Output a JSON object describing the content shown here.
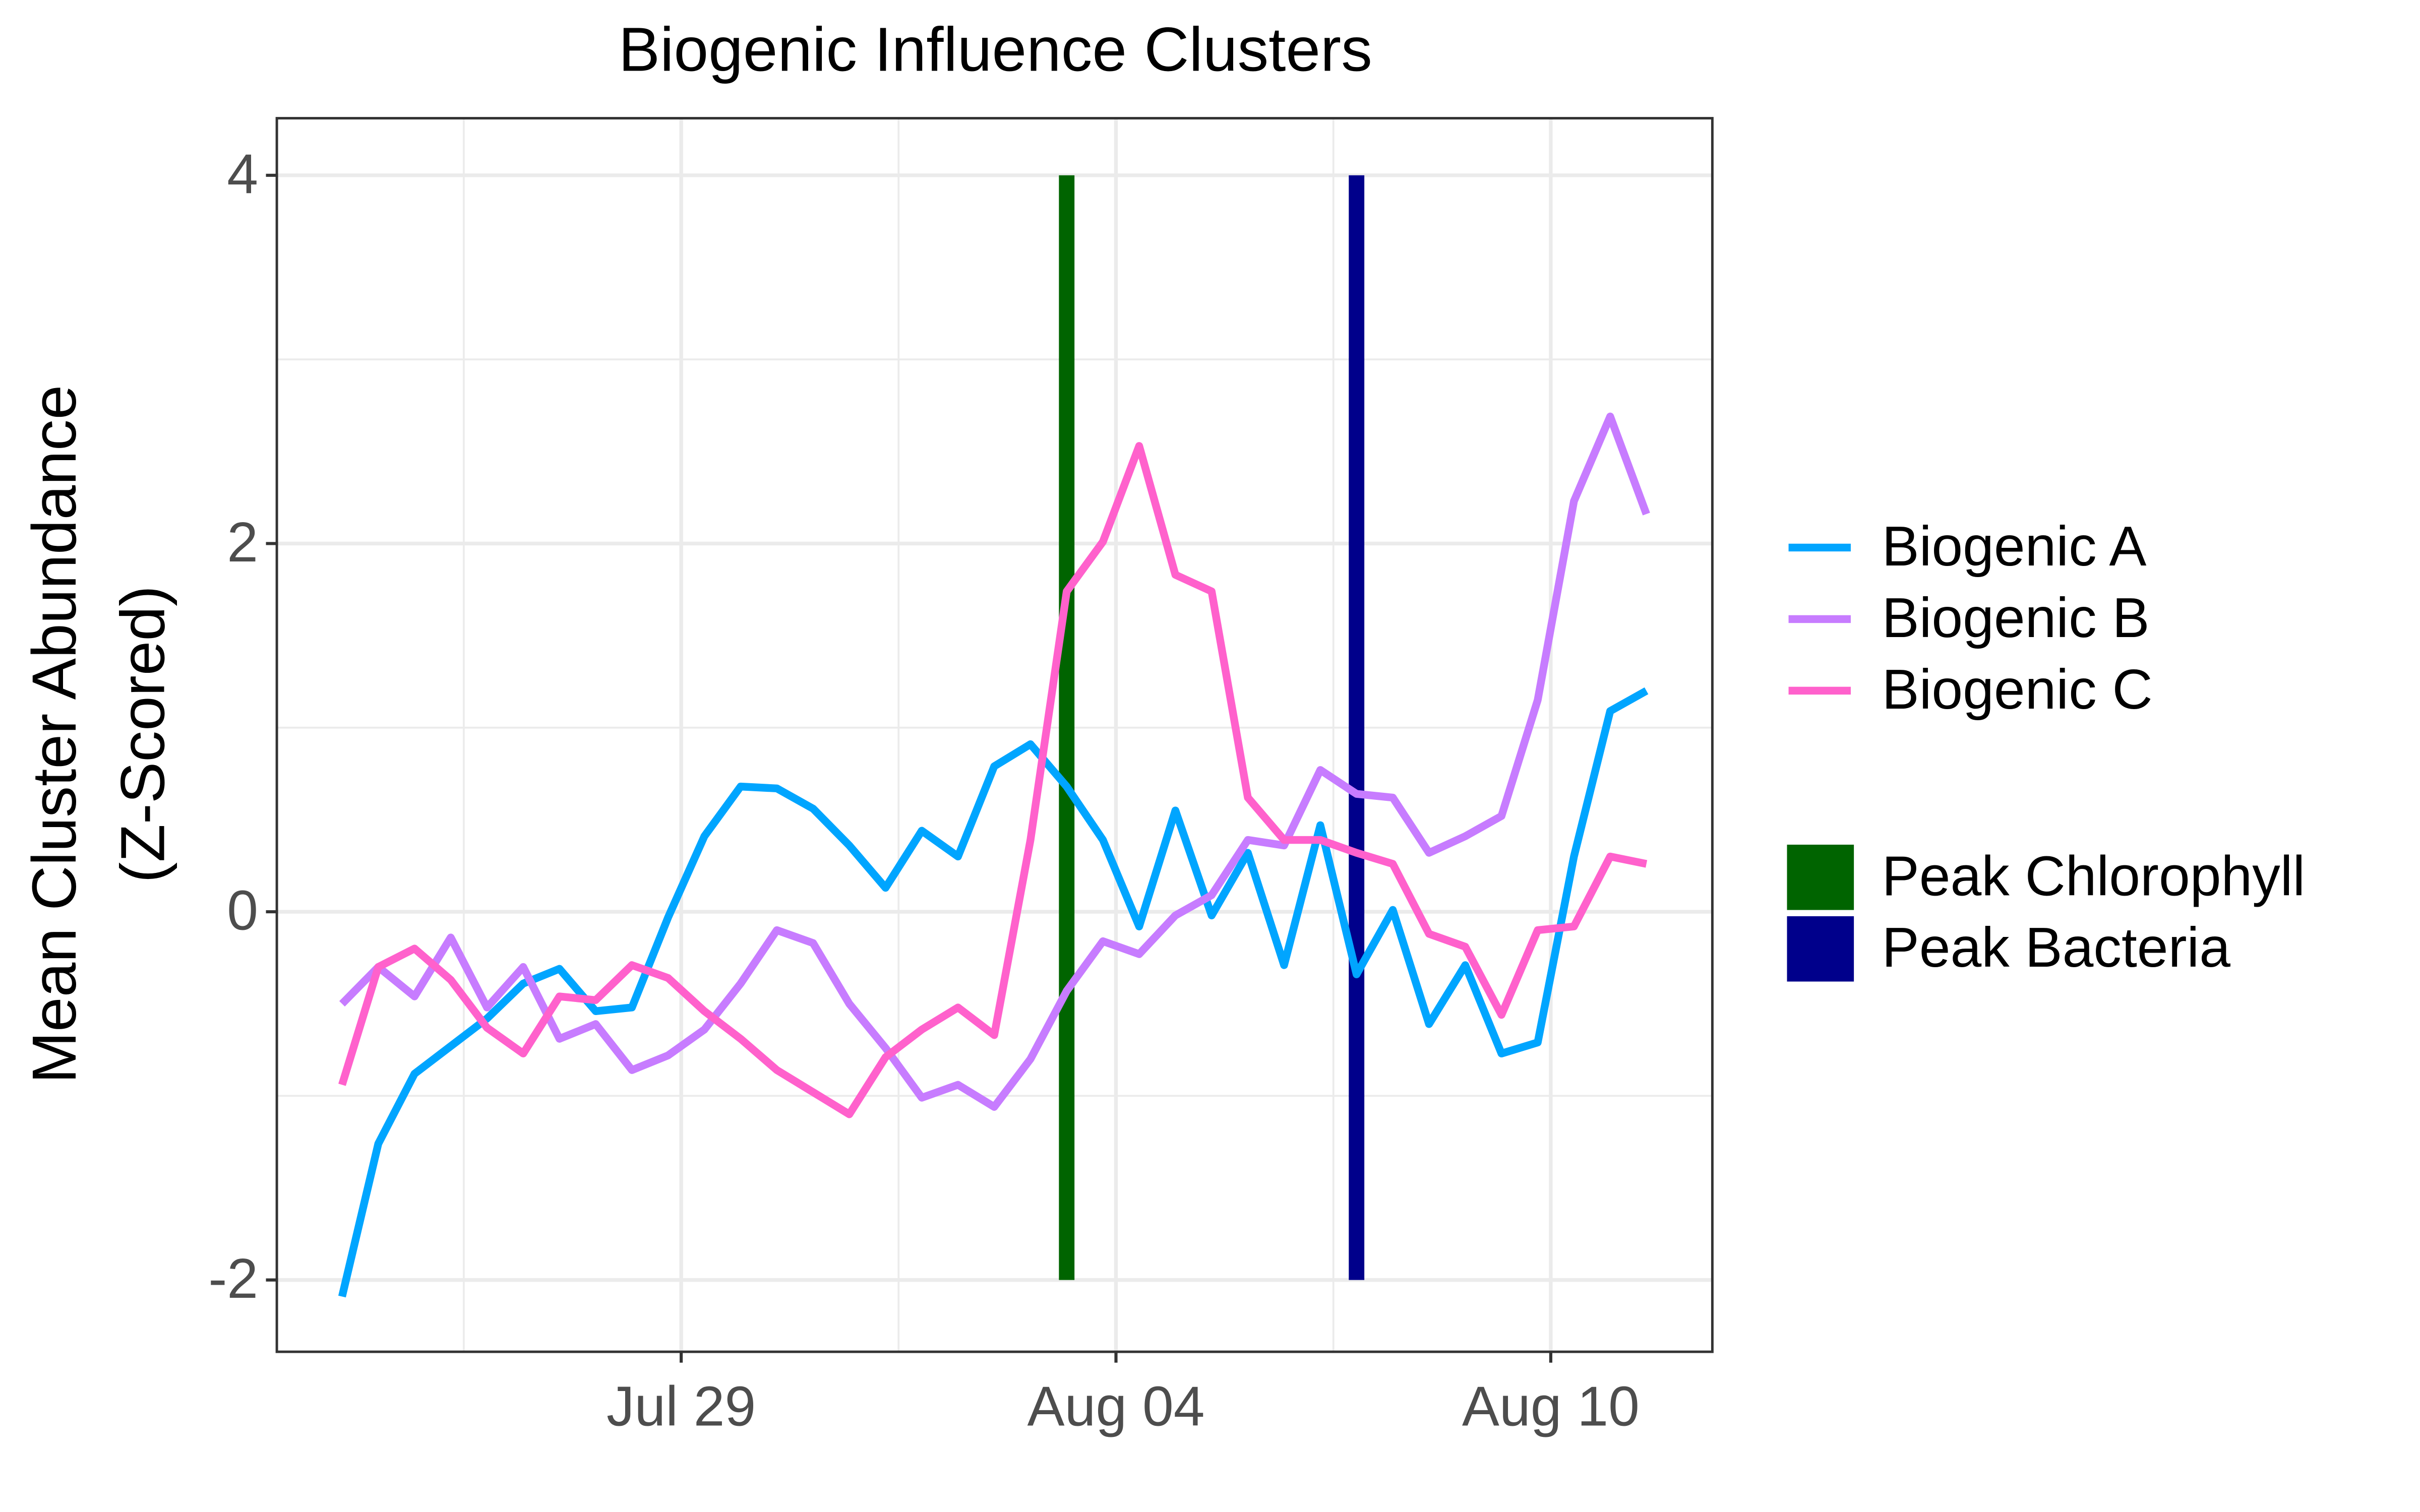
{
  "chart_data": {
    "type": "line",
    "title": "Biogenic Influence Clusters",
    "ylabel": [
      "Mean Cluster Abundance",
      "(Z-Scored)"
    ],
    "x": [
      -4.68,
      -4.18,
      -3.68,
      -3.18,
      -2.68,
      -2.18,
      -1.68,
      -1.18,
      -0.68,
      -0.18,
      0.32,
      0.82,
      1.32,
      1.82,
      2.32,
      2.82,
      3.32,
      3.82,
      4.32,
      4.82,
      5.32,
      5.82,
      6.32,
      6.82,
      7.32,
      7.82,
      8.32,
      8.82,
      9.32,
      9.82,
      10.32,
      10.82,
      11.32,
      11.82,
      12.32,
      12.82,
      13.32
    ],
    "series": [
      {
        "name": "Biogenic A",
        "color": "#00a5ff",
        "values": [
          -2.09,
          -1.26,
          -0.88,
          -0.73,
          -0.58,
          -0.39,
          -0.31,
          -0.54,
          -0.52,
          -0.03,
          0.41,
          0.68,
          0.67,
          0.56,
          0.36,
          0.13,
          0.44,
          0.3,
          0.79,
          0.91,
          0.68,
          0.39,
          -0.08,
          0.55,
          -0.02,
          0.32,
          -0.29,
          0.47,
          -0.34,
          0.01,
          -0.61,
          -0.29,
          -0.77,
          -0.71,
          0.3,
          1.09,
          1.2
        ]
      },
      {
        "name": "Biogenic B",
        "color": "#c77cff",
        "values": [
          -0.5,
          -0.3,
          -0.46,
          -0.14,
          -0.52,
          -0.3,
          -0.69,
          -0.61,
          -0.86,
          -0.78,
          -0.64,
          -0.39,
          -0.1,
          -0.17,
          -0.5,
          -0.74,
          -1.01,
          -0.94,
          -1.06,
          -0.8,
          -0.43,
          -0.16,
          -0.23,
          -0.02,
          0.09,
          0.39,
          0.36,
          0.77,
          0.64,
          0.62,
          0.32,
          0.41,
          0.52,
          1.15,
          2.23,
          2.69,
          2.16
        ]
      },
      {
        "name": "Biogenic C",
        "color": "#ff61cc",
        "values": [
          -0.94,
          -0.3,
          -0.2,
          -0.37,
          -0.63,
          -0.77,
          -0.46,
          -0.48,
          -0.29,
          -0.36,
          -0.54,
          -0.69,
          -0.86,
          -0.98,
          -1.1,
          -0.79,
          -0.64,
          -0.52,
          -0.67,
          0.39,
          1.74,
          2.01,
          2.53,
          1.83,
          1.74,
          0.62,
          0.39,
          0.39,
          0.32,
          0.26,
          -0.12,
          -0.19,
          -0.56,
          -0.1,
          -0.08,
          0.3,
          0.26
        ]
      }
    ],
    "vlines": [
      {
        "name": "Peak Chlorophyll",
        "color": "#006400",
        "x": 5.32,
        "ymin": -2,
        "ymax": 4
      },
      {
        "name": "Peak Bacteria",
        "color": "#00008b",
        "x": 9.32,
        "ymin": -2,
        "ymax": 4
      }
    ],
    "xlim": [
      -5.58,
      14.23
    ],
    "ylim": [
      -2.39,
      4.31
    ],
    "xticks": [
      {
        "value": 0,
        "label": "Jul 29"
      },
      {
        "value": 6,
        "label": "Aug 04"
      },
      {
        "value": 12,
        "label": "Aug 10"
      }
    ],
    "yticks": [
      -2,
      0,
      2,
      4
    ],
    "x_minor_ticks": [
      -3,
      3,
      9
    ],
    "y_minor_ticks": [
      -1,
      1,
      3
    ],
    "grid": true,
    "legend": "right"
  }
}
